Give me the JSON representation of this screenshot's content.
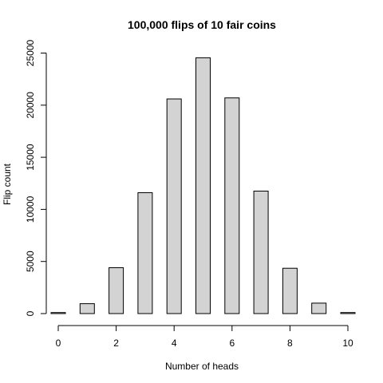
{
  "chart_data": {
    "type": "bar",
    "title": "100,000 flips of 10 fair coins",
    "xlabel": "Number of heads",
    "ylabel": "Flip count",
    "categories": [
      "0",
      "1",
      "2",
      "3",
      "4",
      "5",
      "6",
      "7",
      "8",
      "9",
      "10"
    ],
    "values": [
      100,
      950,
      4400,
      11600,
      20600,
      24550,
      20700,
      11750,
      4350,
      1000,
      100
    ],
    "x_ticks": [
      0,
      2,
      4,
      6,
      8,
      10
    ],
    "y_ticks": [
      0,
      5000,
      10000,
      15000,
      20000,
      25000
    ],
    "xlim": [
      0,
      10
    ],
    "ylim": [
      0,
      25000
    ],
    "bar_color": "#d3d3d3",
    "grid": false,
    "legend": "none"
  }
}
